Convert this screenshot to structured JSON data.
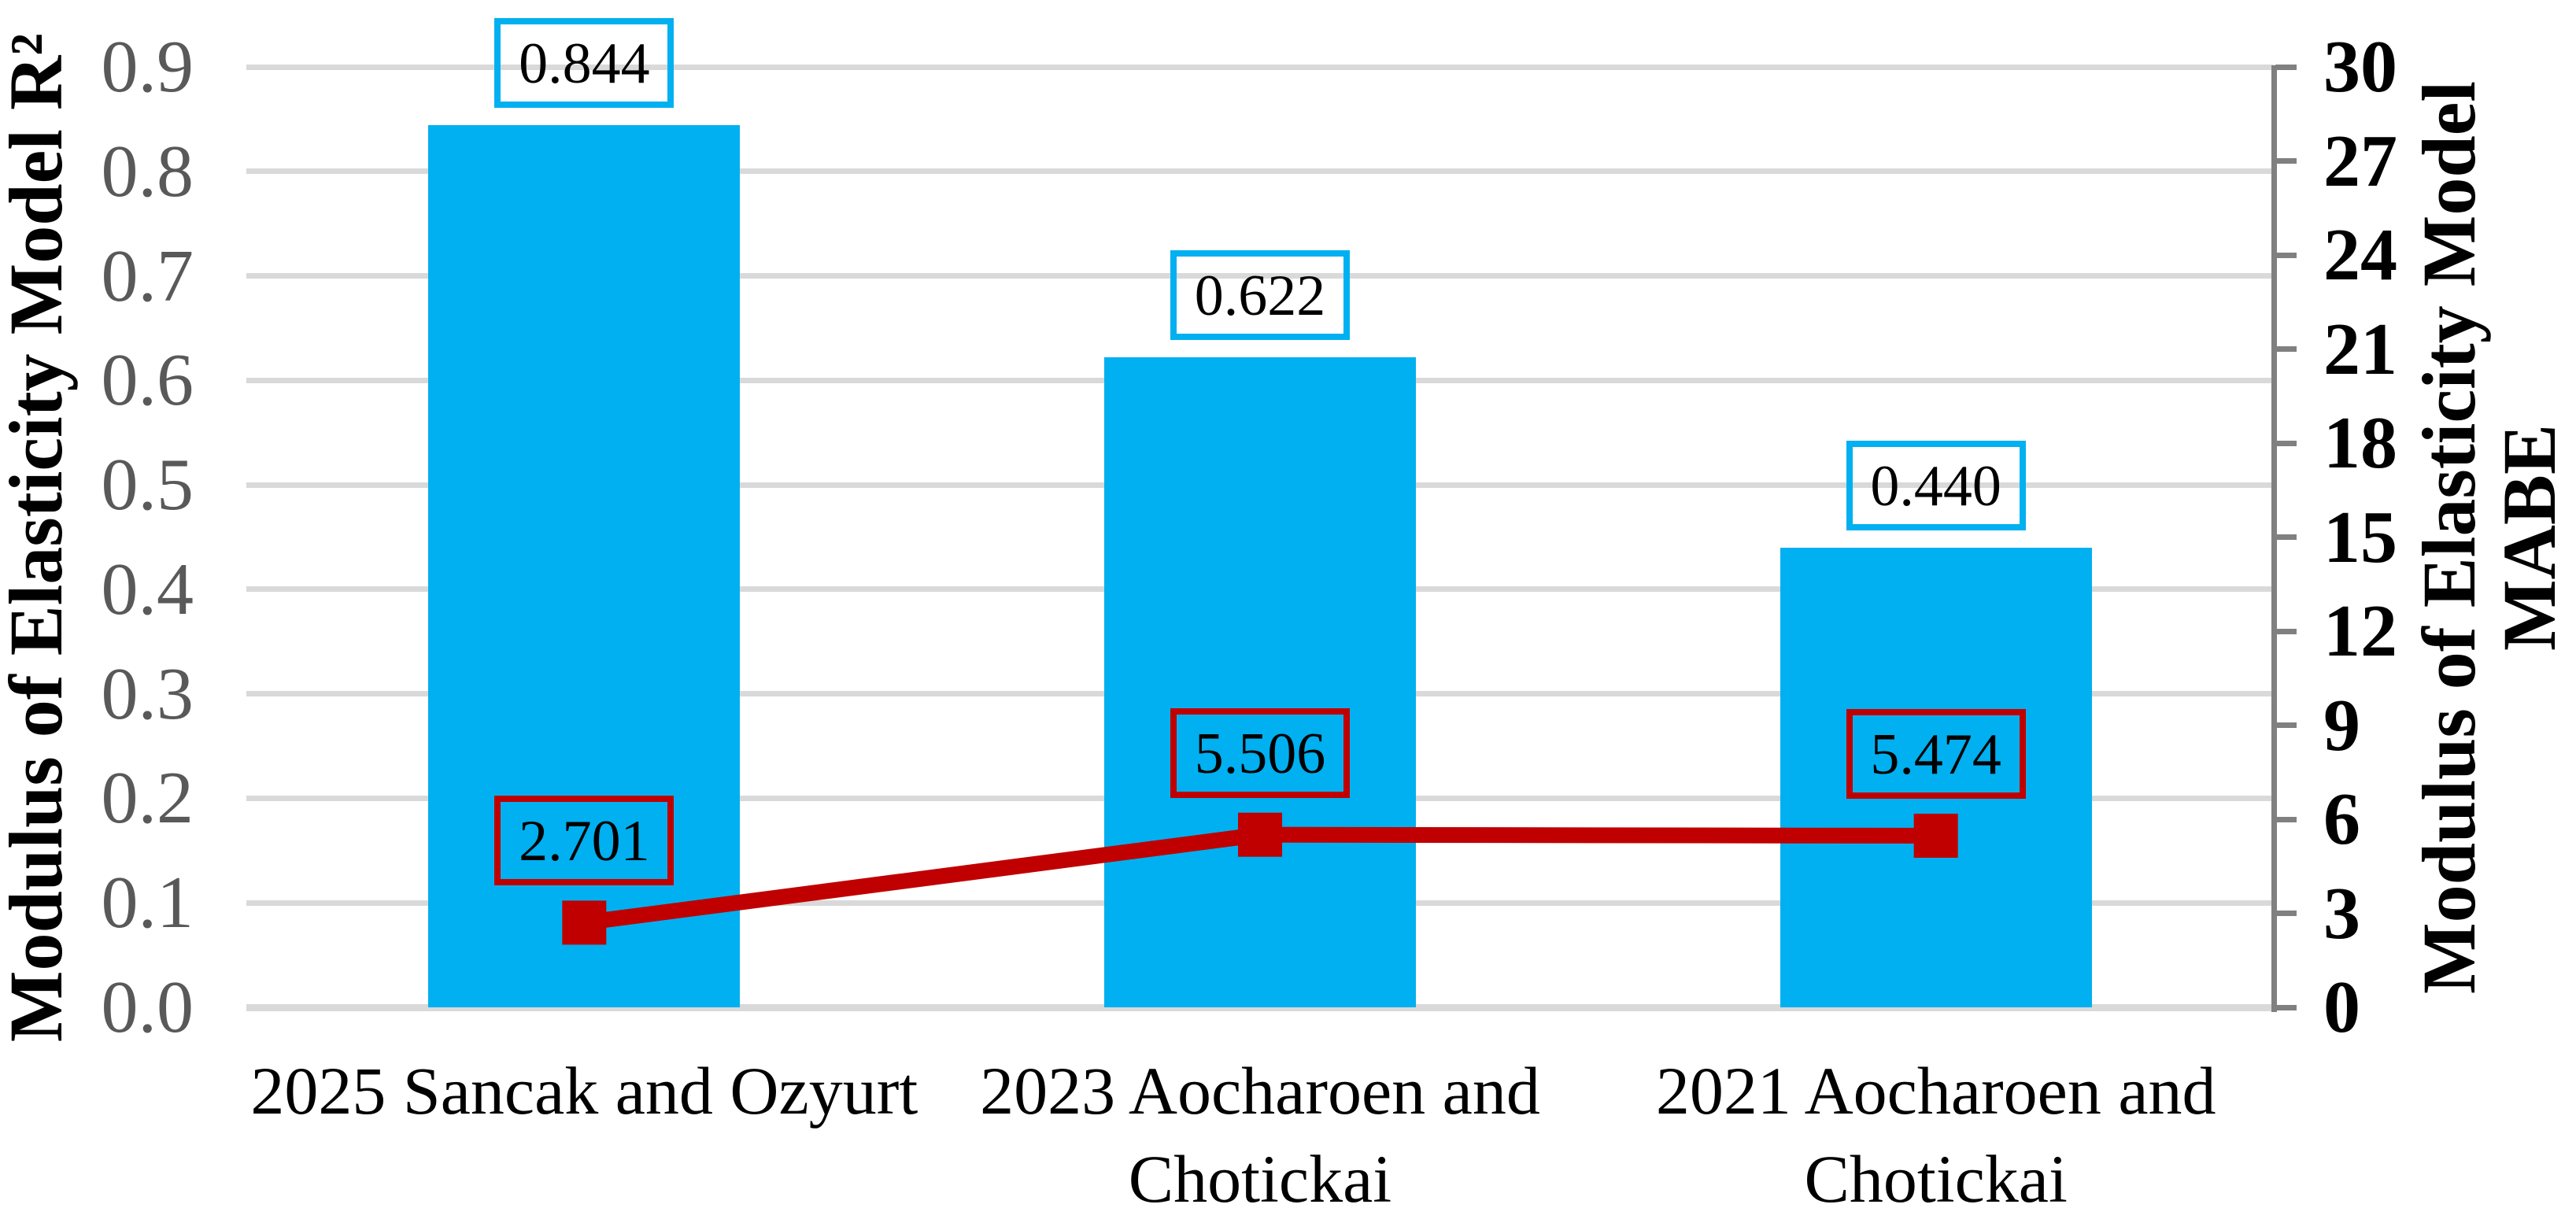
{
  "chart_data": {
    "type": "combo-bar-line",
    "categories": [
      "2025 Sancak and Ozyurt",
      "2023 Aocharoen and Chotickai",
      "2021 Aocharoen and Chotickai"
    ],
    "series": [
      {
        "name": "Modulus of Elasticity Model R²",
        "type": "bar",
        "axis": "left",
        "color": "#00B0F0",
        "values": [
          0.844,
          0.622,
          0.44
        ],
        "labels": [
          "0.844",
          "0.622",
          "0.440"
        ]
      },
      {
        "name": "Modulus of Elasticity Model MABE",
        "type": "line",
        "axis": "right",
        "color": "#C00000",
        "values": [
          2.701,
          5.506,
          5.474
        ],
        "labels": [
          "2.701",
          "5.506",
          "5.474"
        ]
      }
    ],
    "left_axis": {
      "title": "Modulus of Elasticity Model R²",
      "min": 0,
      "max": 0.9,
      "tick_step": 0.1,
      "ticks": [
        "0.0",
        "0.1",
        "0.2",
        "0.3",
        "0.4",
        "0.5",
        "0.6",
        "0.7",
        "0.8",
        "0.9"
      ]
    },
    "right_axis": {
      "title_lines": [
        "Modulus of Elasticity Model",
        "MABE"
      ],
      "min": 0,
      "max": 30,
      "tick_step": 3,
      "ticks": [
        "0",
        "3",
        "6",
        "9",
        "12",
        "15",
        "18",
        "21",
        "24",
        "27",
        "30"
      ]
    },
    "grid": true,
    "legend": "none",
    "colors": {
      "bar": "#00B0F0",
      "line": "#C00000",
      "gridline": "#D9D9D9",
      "axis_line": "#808080",
      "left_tick_text": "#595959",
      "right_tick_text": "#000000",
      "label_text": "#000000"
    }
  }
}
